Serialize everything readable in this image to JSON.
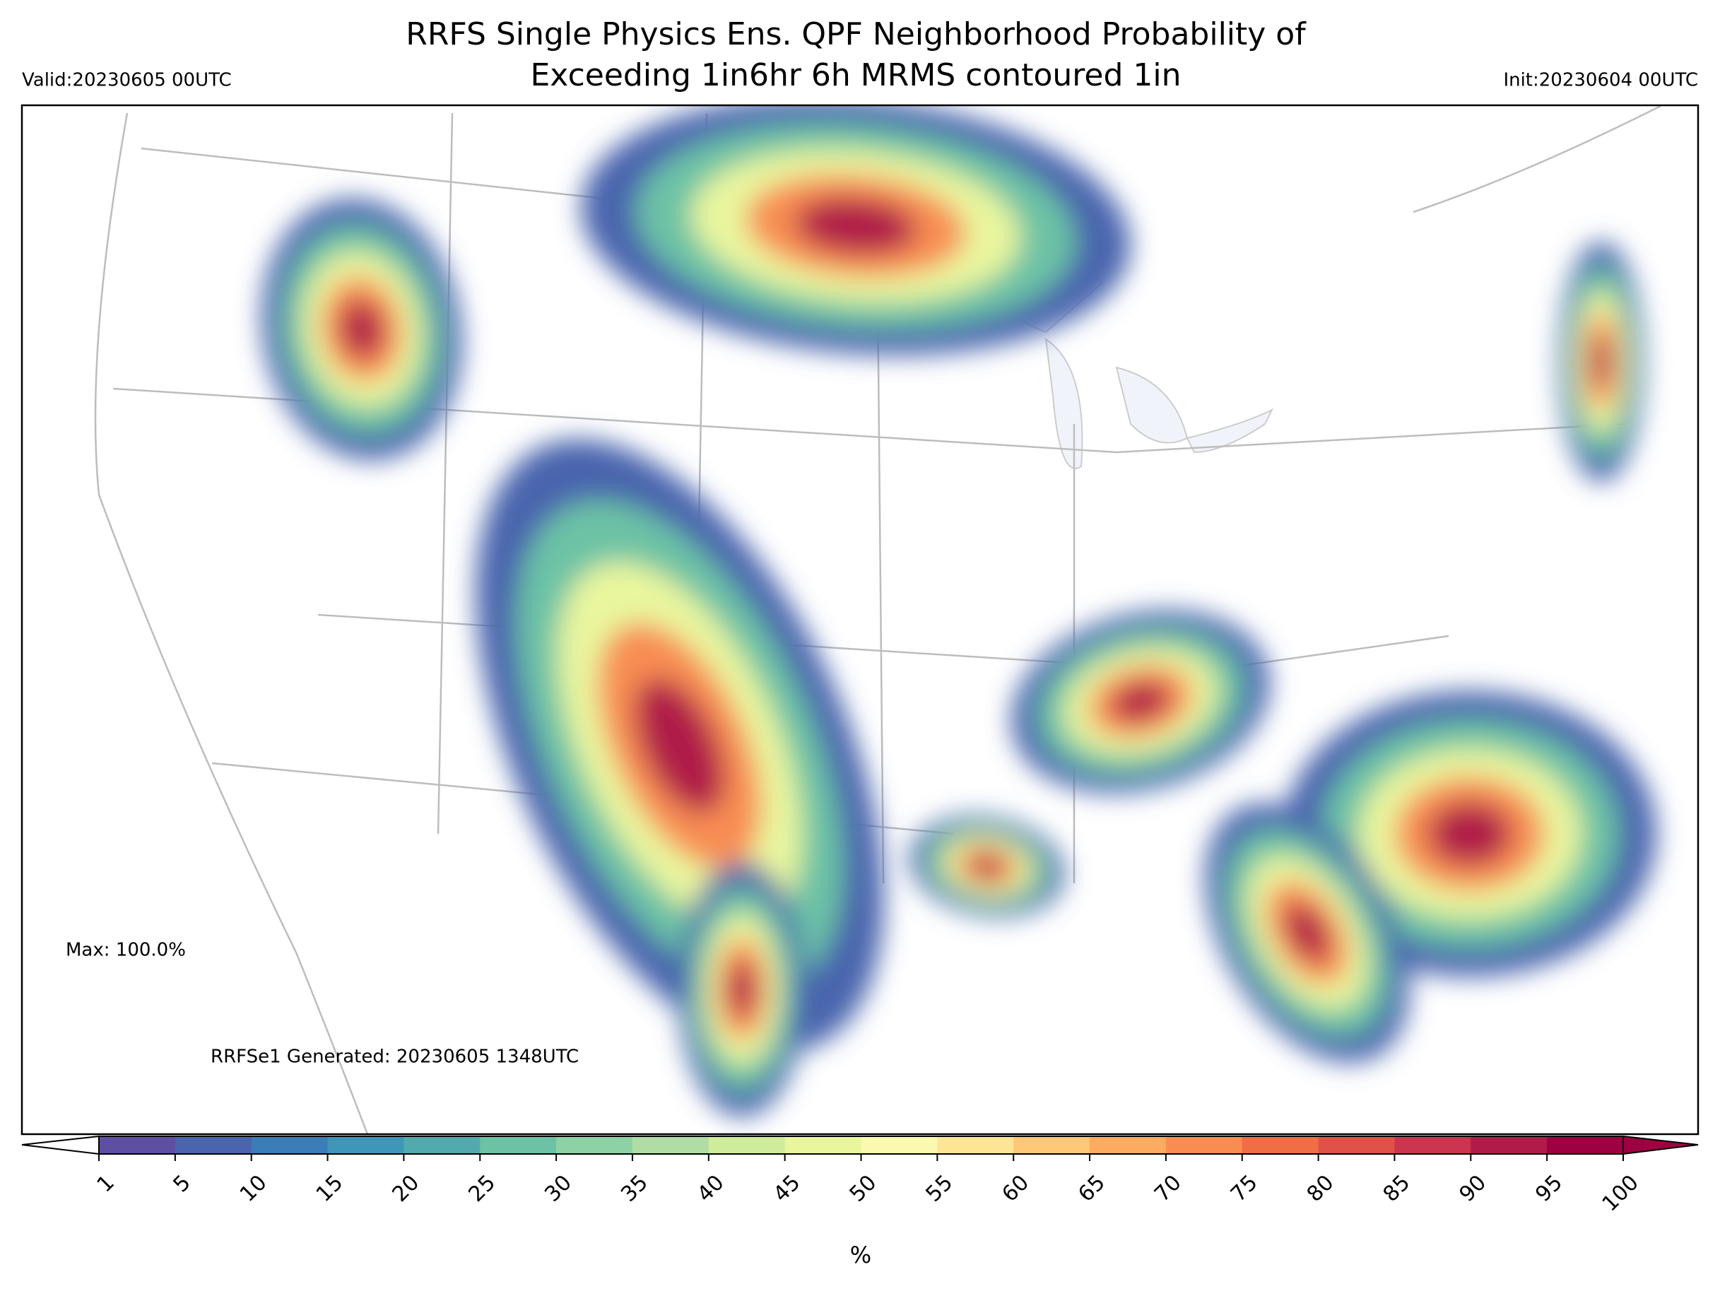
{
  "header": {
    "title_line1": "RRFS Single Physics Ens. QPF Neighborhood Probability of",
    "title_line2": "Exceeding 1in6hr 6h MRMS contoured 1in",
    "valid": "Valid:20230605 00UTC",
    "init": "Init:20230604 00UTC"
  },
  "map": {
    "max_label": "Max: 100.0%",
    "generated": "RRFSe1 Generated: 20230605 1348UTC"
  },
  "colorbar": {
    "ticks": [
      1,
      5,
      10,
      15,
      20,
      25,
      30,
      35,
      40,
      45,
      50,
      55,
      60,
      65,
      70,
      75,
      80,
      85,
      90,
      95,
      100
    ],
    "colors": [
      "#5e4fa2",
      "#4a65ad",
      "#3b7db7",
      "#3f96b7",
      "#52aaae",
      "#6cc2a5",
      "#8ed1a4",
      "#afdda3",
      "#cfeb9c",
      "#e9f69e",
      "#fbf8b0",
      "#fee596",
      "#fdc877",
      "#fcab61",
      "#f88d52",
      "#ef6e46",
      "#df5149",
      "#cb354d",
      "#b01c4a",
      "#9e0142"
    ],
    "label": "%"
  }
}
